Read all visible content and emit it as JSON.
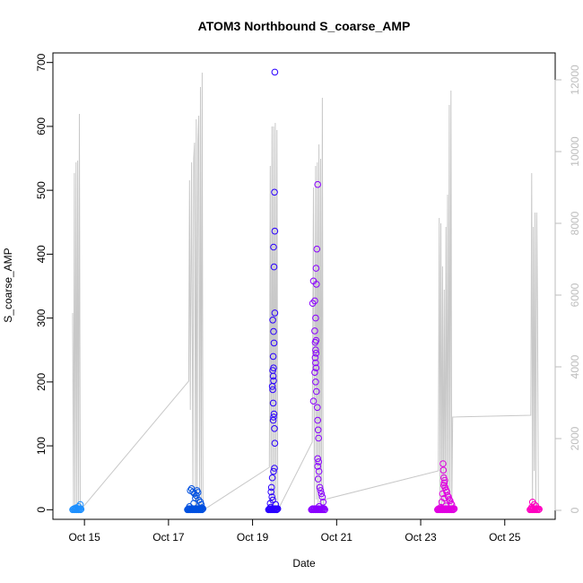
{
  "chart_data": {
    "type": "scatter",
    "title": "ATOM3 Northbound S_coarse_AMP",
    "xlabel": "Date",
    "ylabel": "S_coarse_AMP",
    "x_tick_labels": [
      "Oct 15",
      "Oct 17",
      "Oct 19",
      "Oct 21",
      "Oct 23",
      "Oct 25"
    ],
    "x_tick_days": [
      15,
      17,
      19,
      21,
      23,
      25
    ],
    "xlim_days": [
      14.25,
      26.2
    ],
    "ylim": [
      -15,
      715
    ],
    "y_ticks": [
      0,
      100,
      200,
      300,
      400,
      500,
      600,
      700
    ],
    "y2_ticks": [
      0,
      2000,
      4000,
      6000,
      8000,
      10000,
      12000
    ],
    "y2lim": [
      -250,
      12750
    ],
    "grid": false,
    "colors": {
      "line": "#c8c8c8",
      "right_axis": "#bdbdbd",
      "point_colors": [
        "#1e90ff",
        "#0050e0",
        "#2a00ff",
        "#8a00ff",
        "#e000e0",
        "#ff00c0"
      ]
    },
    "line_series": {
      "name": "",
      "axis": "right",
      "points": [
        [
          14.72,
          5500
        ],
        [
          14.74,
          0
        ],
        [
          14.76,
          9400
        ],
        [
          14.78,
          0
        ],
        [
          14.8,
          9700
        ],
        [
          14.82,
          0
        ],
        [
          14.84,
          9750
        ],
        [
          14.86,
          0
        ],
        [
          14.88,
          11050
        ],
        [
          14.9,
          0
        ],
        [
          17.48,
          3600
        ],
        [
          17.5,
          9200
        ],
        [
          17.52,
          2800
        ],
        [
          17.55,
          9700
        ],
        [
          17.58,
          400
        ],
        [
          17.6,
          9800
        ],
        [
          17.62,
          10250
        ],
        [
          17.64,
          100
        ],
        [
          17.66,
          10900
        ],
        [
          17.68,
          0
        ],
        [
          17.7,
          10300
        ],
        [
          17.72,
          11000
        ],
        [
          17.74,
          0
        ],
        [
          17.76,
          11800
        ],
        [
          17.78,
          0
        ],
        [
          17.8,
          12200
        ],
        [
          17.82,
          0
        ],
        [
          19.4,
          1200
        ],
        [
          19.42,
          9600
        ],
        [
          19.44,
          0
        ],
        [
          19.46,
          10700
        ],
        [
          19.48,
          0
        ],
        [
          19.5,
          10700
        ],
        [
          19.52,
          0
        ],
        [
          19.54,
          10800
        ],
        [
          19.56,
          300
        ],
        [
          19.58,
          10600
        ],
        [
          19.6,
          0
        ],
        [
          20.42,
          1900
        ],
        [
          20.45,
          9000
        ],
        [
          20.47,
          0
        ],
        [
          20.5,
          9600
        ],
        [
          20.52,
          300
        ],
        [
          20.54,
          9700
        ],
        [
          20.56,
          0
        ],
        [
          20.58,
          10200
        ],
        [
          20.6,
          500
        ],
        [
          20.62,
          9800
        ],
        [
          20.64,
          0
        ],
        [
          20.66,
          11500
        ],
        [
          20.68,
          0
        ],
        [
          20.7,
          300
        ],
        [
          23.42,
          1100
        ],
        [
          23.44,
          8150
        ],
        [
          23.46,
          0
        ],
        [
          23.48,
          8000
        ],
        [
          23.5,
          0
        ],
        [
          23.52,
          6800
        ],
        [
          23.54,
          0
        ],
        [
          23.56,
          6150
        ],
        [
          23.58,
          0
        ],
        [
          23.6,
          7900
        ],
        [
          23.62,
          0
        ],
        [
          23.64,
          8800
        ],
        [
          23.66,
          0
        ],
        [
          23.68,
          11300
        ],
        [
          23.7,
          0
        ],
        [
          23.72,
          11700
        ],
        [
          23.74,
          0
        ],
        [
          23.76,
          2600
        ],
        [
          25.62,
          2650
        ],
        [
          25.64,
          9400
        ],
        [
          25.66,
          0
        ],
        [
          25.68,
          7900
        ],
        [
          25.7,
          1100
        ],
        [
          25.72,
          8300
        ],
        [
          25.74,
          0
        ],
        [
          25.76,
          8300
        ],
        [
          25.78,
          5600
        ],
        [
          25.8,
          0
        ]
      ]
    },
    "point_groups": [
      {
        "color": "#1e90ff",
        "x_range": [
          14.72,
          14.92
        ],
        "baseline_count": 14,
        "extra": [
          [
            14.86,
            5
          ],
          [
            14.9,
            8
          ],
          [
            14.8,
            3
          ]
        ]
      },
      {
        "color": "#0050e0",
        "x_range": [
          17.45,
          17.82
        ],
        "baseline_count": 30,
        "extra": [
          [
            17.55,
            33
          ],
          [
            17.58,
            28
          ],
          [
            17.62,
            25
          ],
          [
            17.66,
            22
          ],
          [
            17.68,
            30
          ],
          [
            17.72,
            15
          ],
          [
            17.6,
            10
          ],
          [
            17.76,
            12
          ],
          [
            17.78,
            8
          ],
          [
            17.5,
            5
          ],
          [
            17.64,
            18
          ],
          [
            17.7,
            27
          ],
          [
            17.52,
            30
          ],
          [
            17.8,
            3
          ]
        ]
      },
      {
        "color": "#2a00ff",
        "x_range": [
          19.38,
          19.6
        ],
        "baseline_count": 18,
        "extra": [
          [
            19.53,
            685
          ],
          [
            19.52,
            497
          ],
          [
            19.53,
            436
          ],
          [
            19.5,
            411
          ],
          [
            19.51,
            380
          ],
          [
            19.53,
            308
          ],
          [
            19.48,
            297
          ],
          [
            19.5,
            279
          ],
          [
            19.51,
            261
          ],
          [
            19.49,
            240
          ],
          [
            19.5,
            222
          ],
          [
            19.48,
            218
          ],
          [
            19.49,
            209
          ],
          [
            19.5,
            202
          ],
          [
            19.47,
            193
          ],
          [
            19.48,
            188
          ],
          [
            19.49,
            167
          ],
          [
            19.51,
            150
          ],
          [
            19.5,
            145
          ],
          [
            19.49,
            140
          ],
          [
            19.52,
            127
          ],
          [
            19.53,
            104
          ],
          [
            19.52,
            65
          ],
          [
            19.5,
            60
          ],
          [
            19.47,
            50
          ],
          [
            19.45,
            35
          ],
          [
            19.44,
            28
          ],
          [
            19.46,
            20
          ],
          [
            19.48,
            15
          ],
          [
            19.42,
            10
          ],
          [
            19.55,
            8
          ],
          [
            19.43,
            4
          ]
        ]
      },
      {
        "color": "#8a00ff",
        "x_range": [
          20.4,
          20.72
        ],
        "baseline_count": 22,
        "extra": [
          [
            20.55,
            509
          ],
          [
            20.53,
            408
          ],
          [
            20.51,
            378
          ],
          [
            20.45,
            358
          ],
          [
            20.52,
            353
          ],
          [
            20.48,
            327
          ],
          [
            20.43,
            323
          ],
          [
            20.5,
            300
          ],
          [
            20.48,
            280
          ],
          [
            20.51,
            265
          ],
          [
            20.49,
            262
          ],
          [
            20.5,
            250
          ],
          [
            20.51,
            245
          ],
          [
            20.49,
            238
          ],
          [
            20.5,
            230
          ],
          [
            20.51,
            222
          ],
          [
            20.48,
            215
          ],
          [
            20.5,
            200
          ],
          [
            20.52,
            185
          ],
          [
            20.45,
            170
          ],
          [
            20.54,
            160
          ],
          [
            20.55,
            140
          ],
          [
            20.56,
            125
          ],
          [
            20.57,
            112
          ],
          [
            20.55,
            80
          ],
          [
            20.57,
            75
          ],
          [
            20.55,
            68
          ],
          [
            20.58,
            60
          ],
          [
            20.56,
            48
          ],
          [
            20.6,
            35
          ],
          [
            20.62,
            30
          ],
          [
            20.64,
            25
          ],
          [
            20.66,
            20
          ],
          [
            20.68,
            12
          ],
          [
            20.58,
            5
          ]
        ]
      },
      {
        "color": "#e000e0",
        "x_range": [
          23.4,
          23.8
        ],
        "baseline_count": 30,
        "extra": [
          [
            23.53,
            72
          ],
          [
            23.54,
            62
          ],
          [
            23.55,
            50
          ],
          [
            23.57,
            46
          ],
          [
            23.56,
            42
          ],
          [
            23.55,
            38
          ],
          [
            23.58,
            35
          ],
          [
            23.6,
            31
          ],
          [
            23.62,
            28
          ],
          [
            23.52,
            25
          ],
          [
            23.64,
            22
          ],
          [
            23.66,
            20
          ],
          [
            23.56,
            18
          ],
          [
            23.68,
            16
          ],
          [
            23.7,
            14
          ],
          [
            23.5,
            12
          ],
          [
            23.72,
            10
          ],
          [
            23.74,
            8
          ],
          [
            23.6,
            6
          ],
          [
            23.48,
            4
          ]
        ]
      },
      {
        "color": "#ff00c0",
        "x_range": [
          25.6,
          25.82
        ],
        "baseline_count": 14,
        "extra": [
          [
            25.66,
            12
          ],
          [
            25.7,
            8
          ],
          [
            25.74,
            6
          ],
          [
            25.64,
            4
          ]
        ]
      }
    ]
  }
}
